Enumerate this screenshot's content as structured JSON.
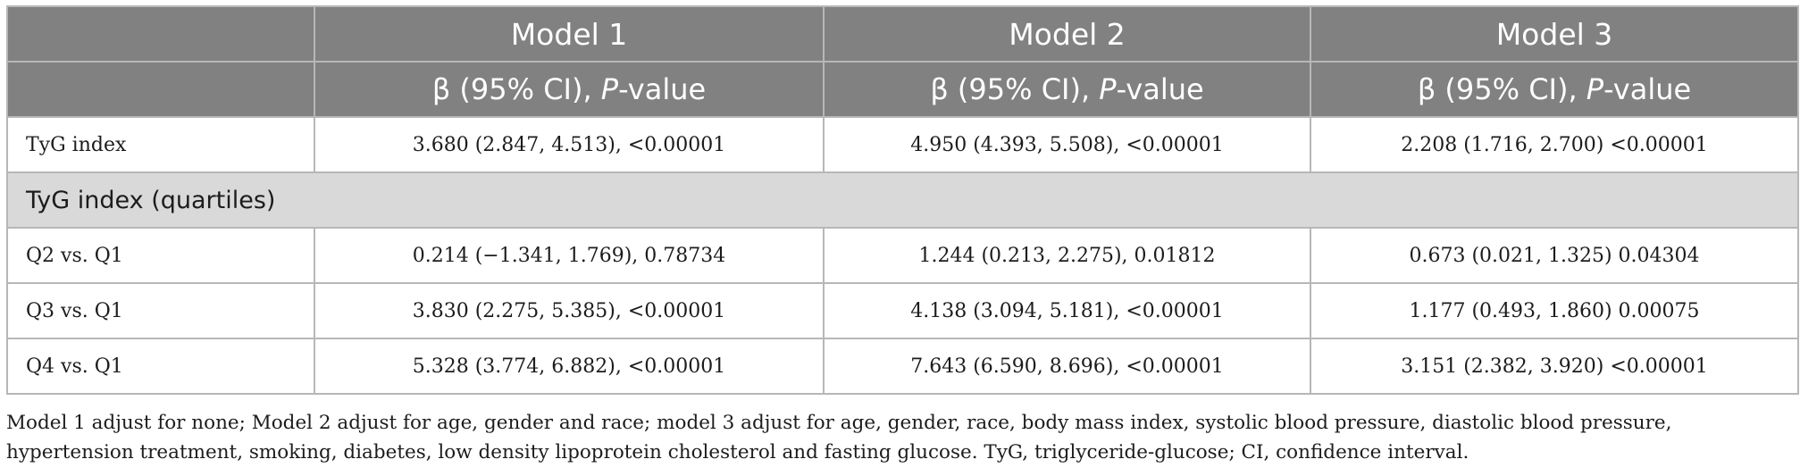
{
  "table": {
    "header": {
      "model_labels": [
        "Model 1",
        "Model 2",
        "Model 3"
      ],
      "stat_label_prefix": "β (95% CI), ",
      "stat_label_italic": "P",
      "stat_label_suffix": "-value"
    },
    "rows": [
      {
        "label": "TyG index",
        "values": [
          "3.680 (2.847, 4.513),  <0.00001",
          "4.950 (4.393, 5.508),  <0.00001",
          "2.208 (1.716, 2.700)  <0.00001"
        ]
      }
    ],
    "section_label": "TyG index (quartiles)",
    "quartile_rows": [
      {
        "label": "Q2 vs. Q1",
        "values": [
          "0.214 (−1.341, 1.769), 0.78734",
          "1.244 (0.213, 2.275), 0.01812",
          "0.673 (0.021, 1.325) 0.04304"
        ]
      },
      {
        "label": "Q3 vs. Q1",
        "values": [
          "3.830 (2.275, 5.385),  <0.00001",
          "4.138 (3.094, 5.181),  <0.00001",
          "1.177 (0.493, 1.860) 0.00075"
        ]
      },
      {
        "label": "Q4 vs. Q1",
        "values": [
          "5.328 (3.774, 6.882),  <0.00001",
          "7.643 (6.590, 8.696),  <0.00001",
          "3.151 (2.382, 3.920)  <0.00001"
        ]
      }
    ]
  },
  "footnote": "Model 1 adjust for none; Model 2 adjust for age, gender and race; model 3 adjust for age, gender, race, body mass index, systolic blood pressure, diastolic blood pressure, hypertension treatment, smoking, diabetes, low density lipoprotein cholesterol and fasting glucose. TyG, triglyceride-glucose; CI, confidence interval."
}
